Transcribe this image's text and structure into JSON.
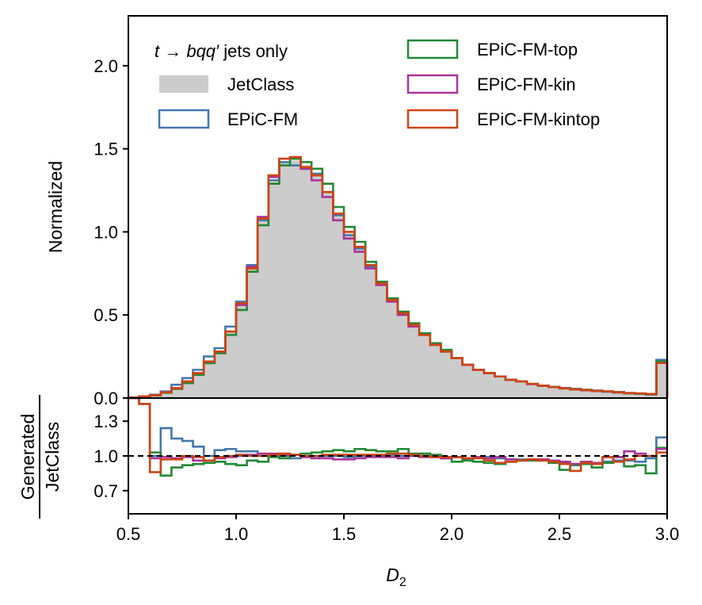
{
  "chart_data": [
    {
      "panel": "main",
      "type": "histogram",
      "title_annotation": {
        "main": "t → bqq′",
        "suffix": " jets only"
      },
      "ylabel": "Normalized",
      "xlim": [
        0.5,
        3.0
      ],
      "ylim": [
        0.0,
        2.3
      ],
      "yticks": [
        0.0,
        0.5,
        1.0,
        1.5,
        2.0
      ],
      "ytick_labels": [
        "0.0",
        "0.5",
        "1.0",
        "1.5",
        "2.0"
      ],
      "bin_width": 0.05,
      "legend": [
        "JetClass",
        "EPiC-FM",
        "EPiC-FM-top",
        "EPiC-FM-kin",
        "EPiC-FM-kintop"
      ],
      "series": [
        {
          "name": "JetClass",
          "style": "filled",
          "color": "#cccccc",
          "values": [
            0.004,
            0.01,
            0.018,
            0.035,
            0.06,
            0.1,
            0.15,
            0.22,
            0.28,
            0.4,
            0.56,
            0.78,
            1.07,
            1.3,
            1.42,
            1.43,
            1.4,
            1.34,
            1.24,
            1.1,
            0.99,
            0.9,
            0.79,
            0.69,
            0.59,
            0.51,
            0.44,
            0.38,
            0.32,
            0.28,
            0.24,
            0.2,
            0.17,
            0.15,
            0.13,
            0.11,
            0.1,
            0.085,
            0.075,
            0.067,
            0.06,
            0.055,
            0.05,
            0.045,
            0.04,
            0.035,
            0.03,
            0.028,
            0.025,
            0.2
          ]
        },
        {
          "name": "EPiC-FM",
          "style": "step",
          "color": "#4477aa",
          "values": [
            0.003,
            0.01,
            0.02,
            0.04,
            0.08,
            0.12,
            0.17,
            0.25,
            0.3,
            0.43,
            0.58,
            0.8,
            1.07,
            1.31,
            1.42,
            1.4,
            1.38,
            1.35,
            1.24,
            1.1,
            0.98,
            0.9,
            0.79,
            0.69,
            0.6,
            0.51,
            0.44,
            0.38,
            0.32,
            0.28,
            0.24,
            0.2,
            0.17,
            0.15,
            0.13,
            0.11,
            0.1,
            0.085,
            0.075,
            0.066,
            0.058,
            0.052,
            0.047,
            0.042,
            0.038,
            0.033,
            0.029,
            0.026,
            0.022,
            0.23
          ]
        },
        {
          "name": "EPiC-FM-top",
          "style": "step",
          "color": "#228833",
          "values": [
            0.004,
            0.01,
            0.016,
            0.032,
            0.055,
            0.09,
            0.14,
            0.21,
            0.27,
            0.38,
            0.53,
            0.76,
            1.04,
            1.29,
            1.4,
            1.44,
            1.42,
            1.38,
            1.29,
            1.15,
            1.03,
            0.94,
            0.82,
            0.7,
            0.6,
            0.52,
            0.45,
            0.39,
            0.33,
            0.29,
            0.24,
            0.2,
            0.17,
            0.15,
            0.13,
            0.11,
            0.1,
            0.085,
            0.075,
            0.067,
            0.06,
            0.055,
            0.05,
            0.045,
            0.04,
            0.036,
            0.029,
            0.026,
            0.022,
            0.22
          ]
        },
        {
          "name": "EPiC-FM-kin",
          "style": "step",
          "color": "#aa3399",
          "values": [
            0.003,
            0.01,
            0.018,
            0.035,
            0.06,
            0.1,
            0.15,
            0.22,
            0.28,
            0.4,
            0.56,
            0.79,
            1.09,
            1.33,
            1.44,
            1.45,
            1.38,
            1.31,
            1.21,
            1.07,
            0.96,
            0.88,
            0.78,
            0.68,
            0.58,
            0.5,
            0.43,
            0.38,
            0.32,
            0.28,
            0.24,
            0.2,
            0.17,
            0.15,
            0.13,
            0.11,
            0.1,
            0.084,
            0.074,
            0.066,
            0.06,
            0.053,
            0.048,
            0.043,
            0.04,
            0.035,
            0.03,
            0.028,
            0.025,
            0.21
          ]
        },
        {
          "name": "EPiC-FM-kintop",
          "style": "step",
          "color": "#cc4411",
          "values": [
            0.003,
            0.01,
            0.017,
            0.034,
            0.058,
            0.1,
            0.15,
            0.22,
            0.28,
            0.4,
            0.57,
            0.78,
            1.08,
            1.34,
            1.44,
            1.45,
            1.39,
            1.34,
            1.24,
            1.11,
            1.0,
            0.91,
            0.8,
            0.69,
            0.59,
            0.51,
            0.44,
            0.38,
            0.32,
            0.28,
            0.24,
            0.2,
            0.17,
            0.15,
            0.13,
            0.11,
            0.1,
            0.085,
            0.075,
            0.066,
            0.058,
            0.052,
            0.048,
            0.043,
            0.04,
            0.035,
            0.03,
            0.028,
            0.024,
            0.21
          ]
        }
      ]
    },
    {
      "panel": "ratio",
      "type": "step",
      "ylabel": {
        "numerator": "Generated",
        "denominator": "JetClass"
      },
      "xlabel": "D",
      "xlabel_subscript": "2",
      "xlim": [
        0.5,
        3.0
      ],
      "ylim": [
        0.5,
        1.5
      ],
      "xticks": [
        0.5,
        1.0,
        1.5,
        2.0,
        2.5,
        3.0
      ],
      "xtick_labels": [
        "0.5",
        "1.0",
        "1.5",
        "2.0",
        "2.5",
        "3.0"
      ],
      "yticks": [
        0.7,
        1.0,
        1.3
      ],
      "ytick_labels": [
        "0.7",
        "1.0",
        "1.3"
      ],
      "reference_line": 1.0,
      "bin_width": 0.05,
      "series": [
        {
          "name": "EPiC-FM",
          "color": "#4477aa",
          "values": [
            1.5,
            1.45,
            1.0,
            1.24,
            1.15,
            1.13,
            1.08,
            1.0,
            1.05,
            1.06,
            1.04,
            1.04,
            1.0,
            1.01,
            1.0,
            0.98,
            0.99,
            1.0,
            1.0,
            1.0,
            0.99,
            1.0,
            1.0,
            1.0,
            1.01,
            1.0,
            1.0,
            1.0,
            0.99,
            0.98,
            0.99,
            0.98,
            0.99,
            0.99,
            0.98,
            0.97,
            0.97,
            0.97,
            0.96,
            0.96,
            0.94,
            0.93,
            0.94,
            0.94,
            0.95,
            0.96,
            0.96,
            0.95,
            0.98,
            1.16
          ]
        },
        {
          "name": "EPiC-FM-top",
          "color": "#228833",
          "values": [
            1.5,
            1.45,
            1.03,
            0.83,
            0.9,
            0.92,
            0.93,
            0.94,
            0.95,
            0.93,
            0.92,
            0.96,
            0.95,
            0.99,
            0.98,
            1.01,
            1.02,
            1.03,
            1.04,
            1.05,
            1.04,
            1.06,
            1.05,
            1.04,
            1.04,
            1.06,
            1.02,
            1.02,
            1.01,
            0.99,
            0.95,
            0.96,
            0.95,
            0.94,
            0.93,
            0.95,
            0.96,
            0.96,
            0.97,
            0.94,
            0.88,
            0.92,
            0.93,
            0.9,
            0.94,
            0.99,
            0.91,
            0.92,
            0.85,
            1.07
          ]
        },
        {
          "name": "EPiC-FM-kin",
          "color": "#aa3399",
          "values": [
            1.5,
            1.45,
            0.98,
            0.99,
            0.98,
            0.99,
            0.96,
            0.96,
            0.98,
            0.99,
            1.0,
            1.01,
            1.02,
            1.02,
            1.01,
            1.01,
            0.99,
            0.98,
            0.98,
            0.97,
            0.97,
            0.98,
            0.99,
            0.99,
            0.99,
            0.98,
            1.0,
            0.99,
            0.99,
            0.98,
            0.99,
            0.98,
            0.99,
            0.98,
            0.99,
            0.97,
            0.96,
            0.97,
            0.97,
            0.96,
            0.95,
            0.93,
            0.95,
            0.94,
            0.99,
            0.99,
            1.04,
            1.02,
            1.0,
            1.06
          ]
        },
        {
          "name": "EPiC-FM-kintop",
          "color": "#cc4411",
          "values": [
            1.5,
            1.45,
            0.86,
            0.97,
            0.97,
            1.0,
            0.99,
            0.96,
            0.99,
            1.0,
            1.01,
            1.0,
            1.0,
            1.01,
            1.02,
            1.01,
            1.0,
            1.0,
            1.01,
            1.01,
            1.01,
            1.01,
            1.01,
            1.01,
            1.02,
            1.02,
            1.01,
            1.0,
            0.99,
            0.99,
            0.99,
            0.98,
            0.98,
            0.96,
            0.94,
            0.95,
            0.96,
            0.97,
            0.96,
            0.95,
            0.93,
            0.87,
            0.94,
            0.93,
            0.99,
            0.95,
            0.97,
            1.0,
            1.0,
            1.03
          ]
        }
      ]
    }
  ]
}
